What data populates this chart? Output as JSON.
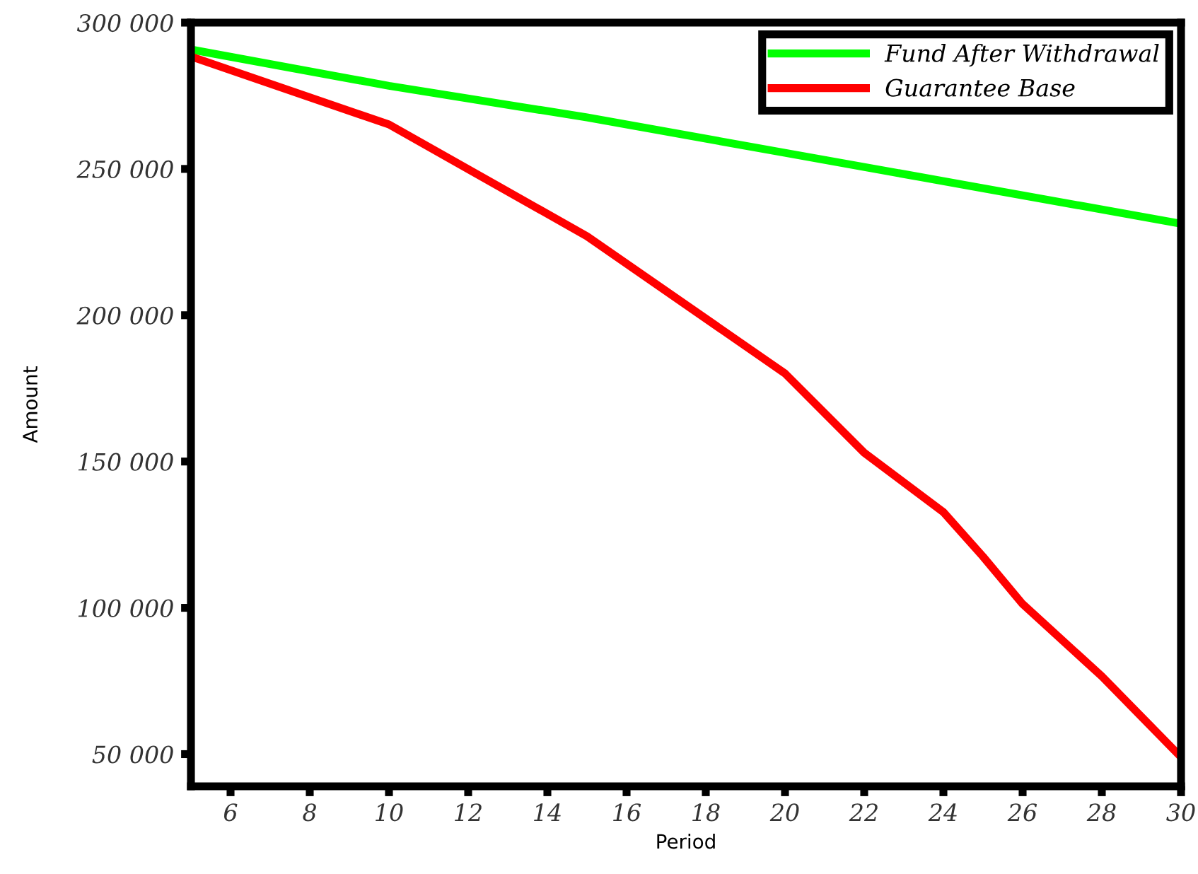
{
  "chart_data": {
    "type": "line",
    "xlabel": "Period",
    "ylabel": "Amount",
    "series": [
      {
        "name": "Fund After Withdrawal",
        "color": "#00ff00",
        "x": [
          5,
          10,
          15,
          20,
          25,
          30
        ],
        "values": [
          290800,
          278400,
          267600,
          255500,
          243400,
          231300
        ]
      },
      {
        "name": "Guarantee Base",
        "color": "#ff0000",
        "x": [
          5,
          10,
          15,
          20,
          22,
          24,
          25,
          26,
          28,
          30
        ],
        "values": [
          288400,
          265200,
          227000,
          180100,
          153000,
          132700,
          117500,
          101300,
          76600,
          49000
        ]
      }
    ],
    "xlim": [
      5,
      30
    ],
    "xticks": [
      6,
      8,
      10,
      12,
      14,
      16,
      18,
      20,
      22,
      24,
      26,
      28,
      30
    ],
    "ylim": [
      39000,
      300000
    ],
    "yticks": [
      {
        "value": 50000,
        "label": "50 000"
      },
      {
        "value": 100000,
        "label": "100 000"
      },
      {
        "value": 150000,
        "label": "150 000"
      },
      {
        "value": 200000,
        "label": "200 000"
      },
      {
        "value": 250000,
        "label": "250 000"
      },
      {
        "value": 300000,
        "label": "300 000"
      }
    ],
    "grid": false,
    "legend": "top right",
    "marker": "none",
    "line_style": "solid"
  }
}
